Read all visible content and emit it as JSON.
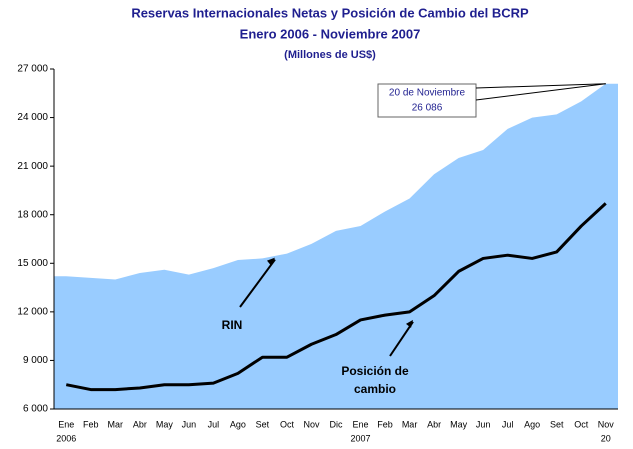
{
  "chart_data": {
    "type": "area-line",
    "title": "Reservas Internacionales Netas y Posición de Cambio del BCRP",
    "subtitle": "Enero 2006 - Noviembre 2007",
    "unit_label": "(Millones de US$)",
    "categories": [
      "Ene",
      "Feb",
      "Mar",
      "Abr",
      "May",
      "Jun",
      "Jul",
      "Ago",
      "Set",
      "Oct",
      "Nov",
      "Dic",
      "Ene",
      "Feb",
      "Mar",
      "Abr",
      "May",
      "Jun",
      "Jul",
      "Ago",
      "Set",
      "Oct",
      "Nov"
    ],
    "category_sublabels": [
      "2006",
      null,
      null,
      null,
      null,
      null,
      null,
      null,
      null,
      null,
      null,
      null,
      "2007",
      null,
      null,
      null,
      null,
      null,
      null,
      null,
      null,
      null,
      "20"
    ],
    "series": [
      {
        "name": "RIN",
        "color": "#99ccff",
        "kind": "area",
        "values": [
          14200,
          14100,
          14000,
          14400,
          14600,
          14300,
          14700,
          15200,
          15300,
          15600,
          16200,
          17000,
          17300,
          18200,
          19000,
          20500,
          21500,
          22000,
          23300,
          24000,
          24200,
          25000,
          26086
        ],
        "value_labels": [
          null,
          null,
          null,
          null,
          null,
          null,
          null,
          null,
          null,
          null,
          null,
          null,
          null,
          null,
          null,
          null,
          null,
          null,
          null,
          null,
          null,
          null,
          "26 086"
        ]
      },
      {
        "name": "Posición de cambio",
        "color": "#000000",
        "kind": "line",
        "values": [
          7500,
          7200,
          7200,
          7300,
          7500,
          7500,
          7600,
          8200,
          9200,
          9200,
          10000,
          10600,
          11500,
          11800,
          12000,
          13000,
          14500,
          15300,
          15500,
          15300,
          15700,
          17300,
          18700
        ]
      }
    ],
    "annotations": [
      {
        "text": "RIN"
      },
      {
        "text": "Posición de"
      },
      {
        "text": "cambio"
      },
      {
        "text": "20 de Noviembre"
      }
    ],
    "ylim": [
      6000,
      27000
    ],
    "yticks": [
      {
        "value": 6000,
        "label": "6 000"
      },
      {
        "value": 9000,
        "label": "9 000"
      },
      {
        "value": 12000,
        "label": "12 000"
      },
      {
        "value": 15000,
        "label": "15 000"
      },
      {
        "value": 18000,
        "label": "18 000"
      },
      {
        "value": 21000,
        "label": "21 000"
      },
      {
        "value": 24000,
        "label": "24 000"
      },
      {
        "value": 27000,
        "label": "27 000"
      }
    ],
    "grid": false
  }
}
